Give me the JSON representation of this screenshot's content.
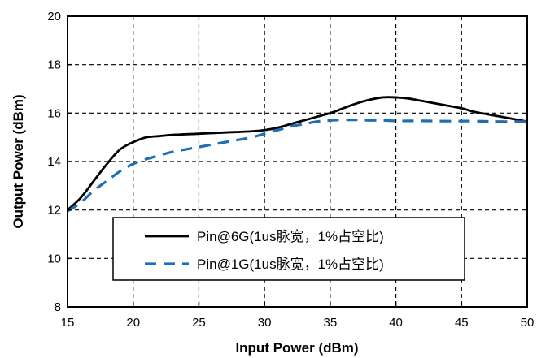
{
  "chart_data": {
    "type": "line",
    "xlabel": "Input Power (dBm)",
    "ylabel": "Output Power (dBm)",
    "xlim": [
      15,
      50
    ],
    "ylim": [
      8,
      20
    ],
    "xticks": [
      15,
      20,
      25,
      30,
      35,
      40,
      45,
      50
    ],
    "yticks": [
      8,
      10,
      12,
      14,
      16,
      18,
      20
    ],
    "xtick_labels": [
      "15",
      "20",
      "25",
      "30",
      "35",
      "40",
      "45",
      "50"
    ],
    "ytick_labels": [
      "8",
      "10",
      "12",
      "14",
      "16",
      "18",
      "20"
    ],
    "grid": true,
    "legend_position": "lower-center",
    "series": [
      {
        "name": "Pin@6G(1us脉宽，1%占空比)",
        "color": "#000000",
        "style": "solid",
        "x": [
          15,
          16,
          17,
          18,
          19,
          20,
          21,
          22,
          23,
          25,
          27,
          29,
          30,
          31,
          32,
          33,
          34,
          35,
          36,
          37,
          38,
          39,
          40,
          41,
          42,
          43,
          44,
          45,
          46,
          47,
          48,
          49,
          50
        ],
        "y": [
          12.0,
          12.5,
          13.2,
          13.9,
          14.5,
          14.8,
          15.0,
          15.05,
          15.1,
          15.15,
          15.2,
          15.25,
          15.3,
          15.4,
          15.55,
          15.7,
          15.85,
          16.0,
          16.2,
          16.4,
          16.55,
          16.65,
          16.65,
          16.6,
          16.5,
          16.4,
          16.3,
          16.2,
          16.05,
          15.95,
          15.85,
          15.75,
          15.65
        ]
      },
      {
        "name": "Pin@1G(1us脉宽，1%占空比)",
        "color": "#1f6fb5",
        "style": "dashed",
        "x": [
          15,
          16,
          17,
          18,
          19,
          20,
          21,
          22,
          23,
          25,
          27,
          29,
          30,
          31,
          32,
          33,
          34,
          35,
          36,
          37,
          38,
          39,
          40,
          42,
          44,
          46,
          48,
          50
        ],
        "y": [
          11.95,
          12.3,
          12.8,
          13.2,
          13.6,
          13.9,
          14.1,
          14.25,
          14.4,
          14.6,
          14.8,
          15.0,
          15.15,
          15.3,
          15.45,
          15.55,
          15.65,
          15.7,
          15.72,
          15.72,
          15.7,
          15.7,
          15.68,
          15.68,
          15.67,
          15.67,
          15.65,
          15.65
        ]
      }
    ]
  }
}
